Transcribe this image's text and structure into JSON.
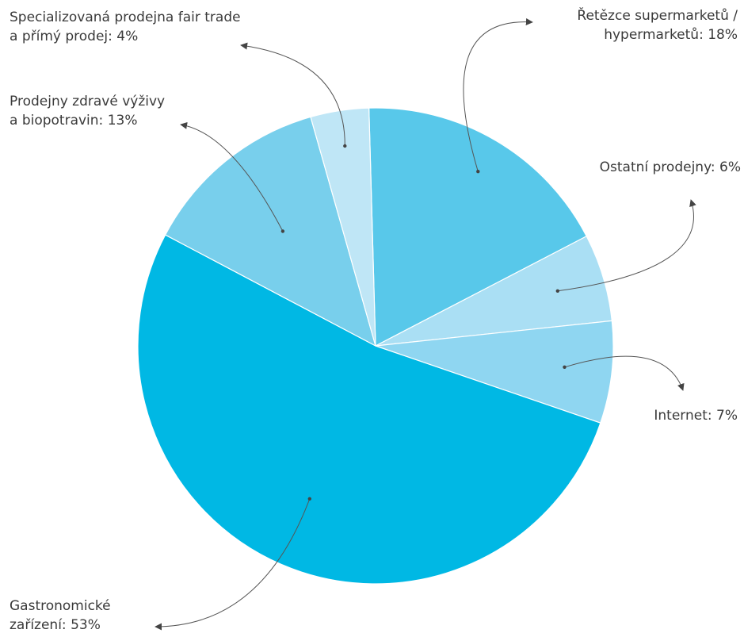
{
  "chart_data": {
    "type": "pie",
    "title": "",
    "slices": [
      {
        "lines": [
          "Řetězce supermarketů /",
          "hypermarketů: 18%"
        ],
        "value": 18,
        "color": "#58c8ea"
      },
      {
        "lines": [
          "Ostatní prodejny: 6%"
        ],
        "value": 6,
        "color": "#aadff4"
      },
      {
        "lines": [
          "Internet: 7%"
        ],
        "value": 7,
        "color": "#8fd6f1"
      },
      {
        "lines": [
          "Gastronomické",
          "zařízení: 53%"
        ],
        "value": 53,
        "color": "#00b8e4"
      },
      {
        "lines": [
          "Prodejny zdravé výživy",
          "a biopotravin: 13%"
        ],
        "value": 13,
        "color": "#78cfec"
      },
      {
        "lines": [
          "Specializovaná prodejna fair trade",
          "a přímý prodej: 4%"
        ],
        "value": 4,
        "color": "#bfe6f6"
      }
    ],
    "grid": false,
    "legend": "none"
  }
}
